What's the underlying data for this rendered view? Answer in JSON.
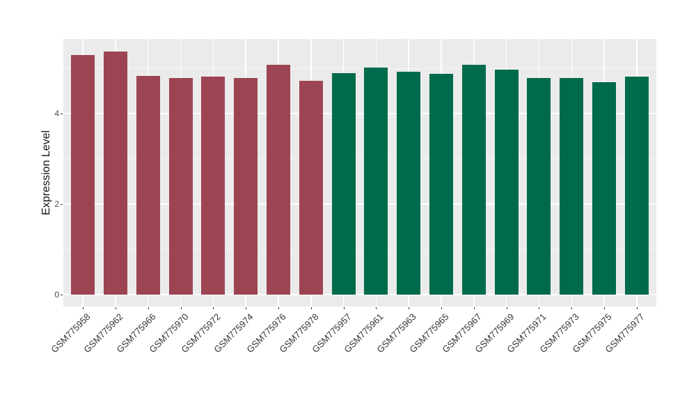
{
  "chart_data": {
    "type": "bar",
    "title": "",
    "xlabel": "",
    "ylabel": "Expression Level",
    "ylim": [
      0,
      5.65
    ],
    "yticks": [
      0,
      2,
      4
    ],
    "minor_gridlines": [
      1,
      3,
      5
    ],
    "grid": "on",
    "legend": "none",
    "categories": [
      "GSM775958",
      "GSM775962",
      "GSM775966",
      "GSM775970",
      "GSM775972",
      "GSM775974",
      "GSM775976",
      "GSM775978",
      "GSM775957",
      "GSM775961",
      "GSM775963",
      "GSM775965",
      "GSM775967",
      "GSM775969",
      "GSM775971",
      "GSM775973",
      "GSM775975",
      "GSM775977"
    ],
    "values": [
      5.3,
      5.37,
      4.83,
      4.79,
      4.82,
      4.79,
      5.08,
      4.72,
      4.9,
      5.02,
      4.93,
      4.88,
      5.08,
      4.97,
      4.79,
      4.78,
      4.69,
      4.82
    ],
    "bar_colors": [
      "#9d4452",
      "#9d4452",
      "#9d4452",
      "#9d4452",
      "#9d4452",
      "#9d4452",
      "#9d4452",
      "#9d4452",
      "#006b4c",
      "#006b4c",
      "#006b4c",
      "#006b4c",
      "#006b4c",
      "#006b4c",
      "#006b4c",
      "#006b4c",
      "#006b4c",
      "#006b4c"
    ],
    "color_groups": [
      {
        "color": "#9d4452",
        "count": 8
      },
      {
        "color": "#006b4c",
        "count": 10
      }
    ],
    "panel_background": "#ebebeb",
    "grid_major_color": "#ffffff",
    "grid_minor_color": "#f5f5f5",
    "tick_color": "#333333",
    "axis_text_color": "#4d4d4d",
    "x_text_color": "#333333",
    "axis_title_color": "#111111"
  }
}
